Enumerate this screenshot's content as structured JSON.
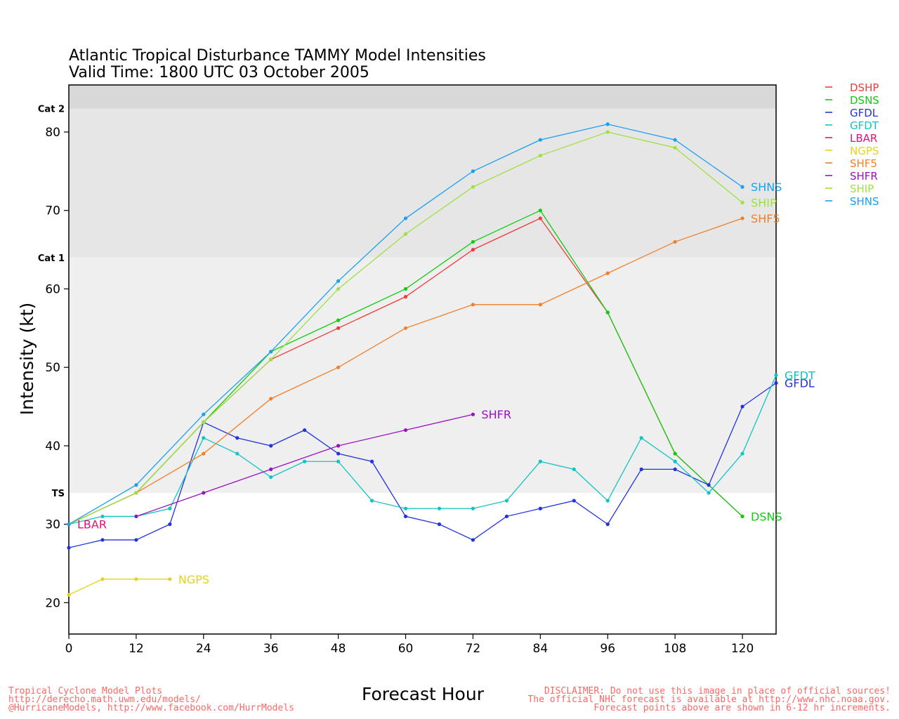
{
  "chart_data": {
    "type": "line",
    "title": "Atlantic Tropical Disturbance TAMMY Model Intensities",
    "subtitle": "Valid Time: 1800 UTC 03 October 2005",
    "xlabel": "Forecast Hour",
    "ylabel": "Intensity (kt)",
    "xlim": [
      0,
      126
    ],
    "ylim": [
      16,
      86
    ],
    "x_ticks": [
      0,
      12,
      24,
      36,
      48,
      60,
      72,
      84,
      96,
      108,
      120
    ],
    "y_ticks": [
      20,
      30,
      40,
      50,
      60,
      70,
      80
    ],
    "intensity_bands": [
      {
        "label": "TS",
        "threshold": 34
      },
      {
        "label": "Cat 1",
        "threshold": 64
      },
      {
        "label": "Cat 2",
        "threshold": 83
      }
    ],
    "legend_position": "top-right outside",
    "series": [
      {
        "name": "DSHP",
        "color": "#ee3b3b",
        "end_label": "",
        "x": [
          0,
          12,
          24,
          36,
          48,
          60,
          72,
          84,
          96,
          108,
          120
        ],
        "y": [
          30,
          34,
          43,
          51,
          55,
          59,
          65,
          69,
          57,
          39,
          31
        ]
      },
      {
        "name": "DSNS",
        "color": "#11cc11",
        "end_label": "DSNS",
        "x": [
          0,
          12,
          24,
          36,
          48,
          60,
          72,
          84,
          96,
          108,
          120
        ],
        "y": [
          30,
          34,
          43,
          52,
          56,
          60,
          66,
          70,
          57,
          39,
          31
        ]
      },
      {
        "name": "GFDL",
        "color": "#2233dd",
        "end_label": "GFDL",
        "x": [
          0,
          6,
          12,
          18,
          24,
          30,
          36,
          42,
          48,
          54,
          60,
          66,
          72,
          78,
          84,
          90,
          96,
          102,
          108,
          114,
          120,
          126
        ],
        "y": [
          27,
          28,
          28,
          30,
          43,
          41,
          40,
          42,
          39,
          38,
          31,
          30,
          28,
          31,
          32,
          33,
          30,
          37,
          37,
          35,
          45,
          48
        ]
      },
      {
        "name": "GFDT",
        "color": "#11c4c4",
        "end_label": "GFDT",
        "x": [
          0,
          6,
          12,
          18,
          24,
          30,
          36,
          42,
          48,
          54,
          60,
          66,
          72,
          78,
          84,
          90,
          96,
          102,
          108,
          114,
          120,
          126
        ],
        "y": [
          30,
          31,
          31,
          32,
          41,
          39,
          36,
          38,
          38,
          33,
          32,
          32,
          32,
          33,
          38,
          37,
          33,
          41,
          38,
          34,
          39,
          49
        ]
      },
      {
        "name": "LBAR",
        "color": "#e0107a",
        "end_label": "LBAR",
        "x": [
          0
        ],
        "y": [
          30
        ]
      },
      {
        "name": "NGPS",
        "color": "#e6d21c",
        "end_label": "NGPS",
        "x": [
          0,
          6,
          12,
          18
        ],
        "y": [
          21,
          23,
          23,
          23
        ]
      },
      {
        "name": "SHF5",
        "color": "#f07f2a",
        "end_label": "SHF5",
        "x": [
          0,
          12,
          24,
          36,
          48,
          60,
          72,
          84,
          96,
          108,
          120
        ],
        "y": [
          30,
          34,
          39,
          46,
          50,
          55,
          58,
          58,
          62,
          66,
          69
        ]
      },
      {
        "name": "SHFR",
        "color": "#9a10c0",
        "end_label": "SHFR",
        "x": [
          12,
          24,
          36,
          48,
          60,
          72
        ],
        "y": [
          31,
          34,
          37,
          40,
          42,
          44
        ]
      },
      {
        "name": "SHIP",
        "color": "#a0e040",
        "end_label": "SHIP",
        "x": [
          0,
          12,
          24,
          36,
          48,
          60,
          72,
          84,
          96,
          108,
          120
        ],
        "y": [
          30,
          34,
          43,
          51,
          60,
          67,
          73,
          77,
          80,
          78,
          71
        ]
      },
      {
        "name": "SHNS",
        "color": "#1aa0ee",
        "end_label": "SHNS",
        "x": [
          0,
          12,
          24,
          36,
          48,
          60,
          72,
          84,
          96,
          108,
          120
        ],
        "y": [
          30,
          35,
          44,
          52,
          61,
          69,
          75,
          79,
          81,
          79,
          73
        ]
      }
    ]
  },
  "footer": {
    "left_lines": [
      "Tropical Cyclone Model Plots",
      "http://derecho.math.uwm.edu/models/",
      "@HurricaneModels, http://www.facebook.com/HurrModels"
    ],
    "right_lines": [
      "DISCLAIMER: Do not use this image in place of official sources!",
      "The official NHC forecast is available at http://www.nhc.noaa.gov.",
      "Forecast points above are shown in 6-12 hr increments."
    ]
  }
}
